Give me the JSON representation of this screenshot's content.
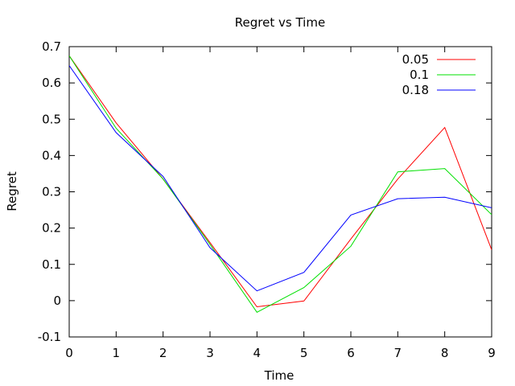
{
  "chart_data": {
    "type": "line",
    "title": "Regret vs Time",
    "xlabel": "Time",
    "ylabel": "Regret",
    "xlim": [
      0,
      9
    ],
    "ylim": [
      -0.1,
      0.7
    ],
    "grid": false,
    "legend_position": "top-right",
    "x": [
      0,
      1,
      2,
      3,
      4,
      5,
      6,
      7,
      8,
      9
    ],
    "x_ticks": [
      "0",
      "1",
      "2",
      "3",
      "4",
      "5",
      "6",
      "7",
      "8",
      "9"
    ],
    "y_ticks": [
      "-0.1",
      "0",
      "0.1",
      "0.2",
      "0.3",
      "0.4",
      "0.5",
      "0.6",
      "0.7"
    ],
    "series": [
      {
        "name": "0.05",
        "color": "#ff0000",
        "values": [
          0.675,
          0.49,
          0.335,
          0.16,
          -0.017,
          -0.001,
          0.17,
          0.335,
          0.477,
          0.14
        ]
      },
      {
        "name": "0.1",
        "color": "#00e000",
        "values": [
          0.675,
          0.475,
          0.335,
          0.155,
          -0.032,
          0.036,
          0.15,
          0.355,
          0.364,
          0.237
        ]
      },
      {
        "name": "0.18",
        "color": "#0000ff",
        "values": [
          0.648,
          0.463,
          0.342,
          0.146,
          0.027,
          0.078,
          0.236,
          0.281,
          0.285,
          0.256
        ]
      }
    ]
  }
}
